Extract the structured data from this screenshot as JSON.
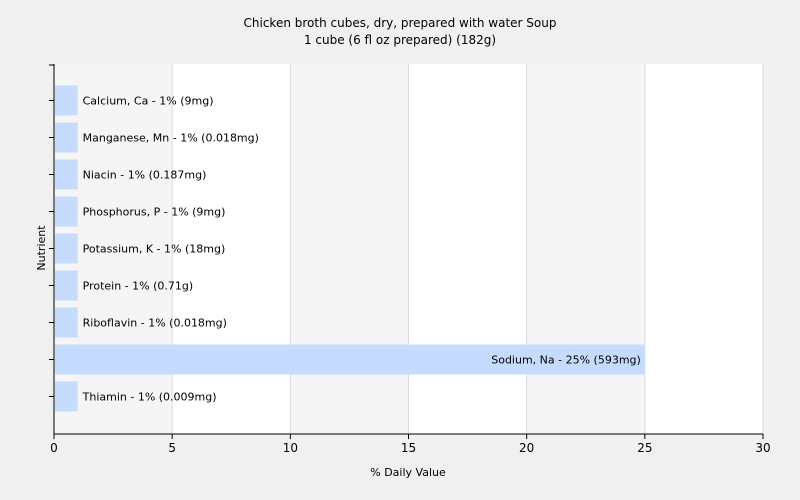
{
  "chart_data": {
    "type": "bar",
    "orientation": "horizontal",
    "title": "Chicken broth cubes, dry, prepared with water Soup",
    "subtitle": "1 cube (6 fl oz prepared) (182g)",
    "xlabel": "% Daily Value",
    "ylabel": "Nutrient",
    "xlim": [
      0,
      30
    ],
    "xticks": [
      0,
      5,
      10,
      15,
      20,
      25,
      30
    ],
    "grid": true,
    "bar_color": "#c5dcff",
    "categories": [
      "Calcium, Ca",
      "Manganese, Mn",
      "Niacin",
      "Phosphorus, P",
      "Potassium, K",
      "Protein",
      "Riboflavin",
      "Sodium, Na",
      "Thiamin"
    ],
    "values": [
      1,
      1,
      1,
      1,
      1,
      1,
      1,
      25,
      1
    ],
    "labels": [
      "Calcium, Ca - 1% (9mg)",
      "Manganese, Mn - 1% (0.018mg)",
      "Niacin - 1% (0.187mg)",
      "Phosphorus, P - 1% (9mg)",
      "Potassium, K - 1% (18mg)",
      "Protein - 1% (0.71g)",
      "Riboflavin - 1% (0.018mg)",
      "Sodium, Na - 25% (593mg)",
      "Thiamin - 1% (0.009mg)"
    ]
  }
}
